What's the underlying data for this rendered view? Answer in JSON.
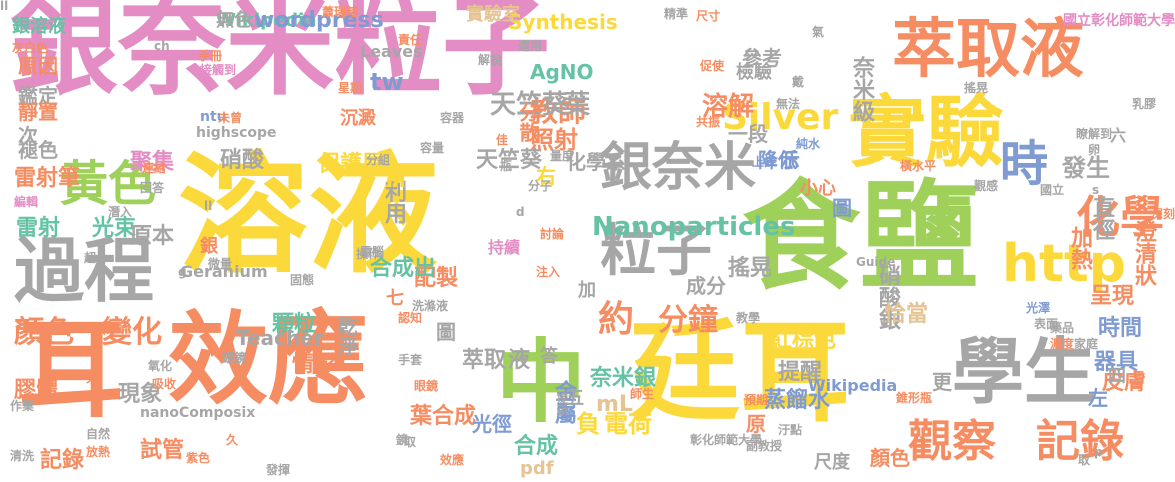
{
  "palette": {
    "pink": "#e38dc4",
    "yellow": "#fcd93a",
    "green": "#9ed05a",
    "orange": "#f68d62",
    "gray": "#a6a6a6",
    "blue": "#7f9bd1",
    "teal": "#66c2a5",
    "tan": "#e5c393"
  },
  "words": [
    {
      "text": "銀奈米粒子",
      "color": "pink"
    },
    {
      "text": "溶液",
      "color": "yellow"
    },
    {
      "text": "食鹽",
      "color": "green"
    },
    {
      "text": "廷耳",
      "color": "yellow"
    },
    {
      "text": "效應",
      "color": "orange"
    },
    {
      "text": "耳",
      "color": "orange"
    },
    {
      "text": "萃取液",
      "color": "orange"
    },
    {
      "text": "實驗",
      "color": "yellow"
    },
    {
      "text": "學生",
      "color": "gray"
    },
    {
      "text": "中",
      "color": "green"
    },
    {
      "text": "過程",
      "color": "gray"
    },
    {
      "text": "黃色",
      "color": "green"
    },
    {
      "text": "http",
      "color": "yellow"
    },
    {
      "text": "銀奈米",
      "color": "gray"
    },
    {
      "text": "粒子",
      "color": "gray"
    },
    {
      "text": "觀察",
      "color": "orange"
    },
    {
      "text": "記錄",
      "color": "orange"
    },
    {
      "text": "顏色",
      "color": "orange"
    },
    {
      "text": "變化",
      "color": "orange"
    },
    {
      "text": "時",
      "color": "blue"
    },
    {
      "text": "化學",
      "color": "orange"
    },
    {
      "text": "約",
      "color": "orange"
    },
    {
      "text": "分鐘",
      "color": "orange"
    },
    {
      "text": "Silver",
      "color": "yellow"
    },
    {
      "text": "教師",
      "color": "orange"
    },
    {
      "text": "溶解",
      "color": "orange"
    },
    {
      "text": "天竺葵",
      "color": "gray"
    },
    {
      "text": "葉",
      "color": "gray"
    },
    {
      "text": "銀溶液",
      "color": "teal"
    },
    {
      "text": "Wikipedia",
      "color": "teal"
    },
    {
      "text": "Synthesis",
      "color": "yellow"
    },
    {
      "text": "AgNO",
      "color": "teal"
    },
    {
      "text": "Nanoparticles",
      "color": "teal"
    },
    {
      "text": "雷射",
      "color": "teal"
    },
    {
      "text": "光束",
      "color": "teal"
    },
    {
      "text": "發生",
      "color": "gray"
    },
    {
      "text": "直徑",
      "color": "gray"
    },
    {
      "text": "加熱",
      "color": "orange"
    },
    {
      "text": "澄清狀",
      "color": "orange"
    },
    {
      "text": "呈現",
      "color": "orange"
    },
    {
      "text": "時間",
      "color": "blue"
    },
    {
      "text": "器具",
      "color": "blue"
    },
    {
      "text": "皮膚",
      "color": "orange"
    },
    {
      "text": "顆粒",
      "color": "teal"
    },
    {
      "text": "紅棕色",
      "color": "yellow"
    },
    {
      "text": "蒸餾水",
      "color": "blue"
    },
    {
      "text": "提醒",
      "color": "gray"
    },
    {
      "text": "萃取",
      "color": "gray"
    },
    {
      "text": "液",
      "color": "gray"
    },
    {
      "text": "葉合成",
      "color": "orange"
    },
    {
      "text": "負",
      "color": "yellow"
    },
    {
      "text": "電荷",
      "color": "yellow"
    },
    {
      "text": "合成",
      "color": "teal"
    },
    {
      "text": "金屬",
      "color": "blue"
    },
    {
      "text": "膠體",
      "color": "orange"
    },
    {
      "text": "現象",
      "color": "gray"
    },
    {
      "text": "試管",
      "color": "orange"
    },
    {
      "text": "記錄",
      "color": "orange"
    },
    {
      "text": "雷射筆",
      "color": "orange"
    },
    {
      "text": "聚集",
      "color": "pink"
    },
    {
      "text": "硝酸",
      "color": "gray"
    },
    {
      "text": "保護層",
      "color": "yellow"
    },
    {
      "text": "利用",
      "color": "gray"
    },
    {
      "text": "配製",
      "color": "orange"
    },
    {
      "text": "原本",
      "color": "gray"
    },
    {
      "text": "合成出",
      "color": "teal"
    },
    {
      "text": "搖晃",
      "color": "gray"
    },
    {
      "text": "成分",
      "color": "gray"
    },
    {
      "text": "化學系",
      "color": "gray"
    },
    {
      "text": "分散",
      "color": "orange"
    },
    {
      "text": "照射",
      "color": "orange"
    },
    {
      "text": "天竺葵",
      "color": "gray"
    },
    {
      "text": "右",
      "color": "yellow"
    },
    {
      "text": "M",
      "color": "yellow"
    },
    {
      "text": "tw",
      "color": "blue"
    },
    {
      "text": "沉澱",
      "color": "orange"
    },
    {
      "text": "參考",
      "color": "gray"
    },
    {
      "text": "檢驗",
      "color": "gray"
    },
    {
      "text": "奈米級",
      "color": "gray"
    },
    {
      "text": "降低",
      "color": "blue"
    },
    {
      "text": "示",
      "color": "blue"
    },
    {
      "text": "圖",
      "color": "blue"
    },
    {
      "text": "硝酸銀",
      "color": "gray"
    },
    {
      "text": "恰當",
      "color": "tan"
    },
    {
      "text": "一段",
      "color": "gray"
    },
    {
      "text": "奈米銀",
      "color": "teal"
    },
    {
      "text": "mL",
      "color": "tan"
    },
    {
      "text": "光徑",
      "color": "blue"
    },
    {
      "text": "情形",
      "color": "orange"
    },
    {
      "text": "乾淨",
      "color": "gray"
    },
    {
      "text": "小心",
      "color": "orange"
    },
    {
      "text": "highscope",
      "color": "gray"
    },
    {
      "text": "Leaves",
      "color": "gray"
    },
    {
      "text": "wordpress",
      "color": "blue"
    },
    {
      "text": "實驗室",
      "color": "tan"
    },
    {
      "text": "次",
      "color": "gray"
    },
    {
      "text": "鑑定",
      "color": "gray"
    },
    {
      "text": "靜置",
      "color": "orange"
    },
    {
      "text": "原因",
      "color": "orange"
    },
    {
      "text": "褪色",
      "color": "gray"
    },
    {
      "text": "答",
      "color": "gray"
    },
    {
      "text": "pdf",
      "color": "tan"
    },
    {
      "text": "nanoComposix",
      "color": "gray"
    },
    {
      "text": "Geranium",
      "color": "gray"
    },
    {
      "text": "ntu",
      "color": "blue"
    },
    {
      "text": "Guide",
      "color": "gray"
    },
    {
      "text": "Teacher",
      "color": "gray"
    },
    {
      "text": "銀",
      "color": "orange"
    },
    {
      "text": "圖",
      "color": "gray"
    },
    {
      "text": "七",
      "color": "orange"
    },
    {
      "text": "四",
      "color": "gray"
    },
    {
      "text": "六",
      "color": "gray"
    },
    {
      "text": "五",
      "color": "gray"
    },
    {
      "text": "加",
      "color": "gray"
    },
    {
      "text": "更",
      "color": "gray"
    },
    {
      "text": "原",
      "color": "orange"
    },
    {
      "text": "左",
      "color": "blue"
    },
    {
      "text": "顏色",
      "color": "orange"
    },
    {
      "text": "尺度",
      "color": "gray"
    },
    {
      "text": "無色",
      "color": "gray"
    },
    {
      "text": "Wikipedia",
      "color": "blue"
    },
    {
      "text": "ch",
      "color": "gray"
    },
    {
      "text": "持續",
      "color": "pink"
    },
    {
      "text": "搖晃",
      "color": "gray"
    },
    {
      "text": "彰化師範大學",
      "color": "gray"
    },
    {
      "text": "國立彰化師範大學",
      "color": "pink"
    },
    {
      "text": "灰白色",
      "color": "orange"
    },
    {
      "text": "清洗",
      "color": "gray"
    },
    {
      "text": "作業",
      "color": "gray"
    },
    {
      "text": "氧化",
      "color": "gray"
    },
    {
      "text": "吸收",
      "color": "orange"
    },
    {
      "text": "銀鏡",
      "color": "gray"
    },
    {
      "text": "手套",
      "color": "gray"
    },
    {
      "text": "眼鏡",
      "color": "orange"
    },
    {
      "text": "師生",
      "color": "orange"
    },
    {
      "text": "提示",
      "color": "gray"
    },
    {
      "text": "錐形瓶",
      "color": "orange"
    },
    {
      "text": "副教授",
      "color": "gray"
    },
    {
      "text": "教學",
      "color": "gray"
    },
    {
      "text": "光澤",
      "color": "blue"
    },
    {
      "text": "表面",
      "color": "gray"
    },
    {
      "text": "藥品",
      "color": "gray"
    },
    {
      "text": "濃度",
      "color": "orange"
    },
    {
      "text": "家庭",
      "color": "gray"
    },
    {
      "text": "汙點",
      "color": "gray"
    },
    {
      "text": "預期",
      "color": "orange"
    },
    {
      "text": "紫色",
      "color": "orange"
    },
    {
      "text": "放熱",
      "color": "orange"
    },
    {
      "text": "自然",
      "color": "gray"
    },
    {
      "text": "發揮",
      "color": "gray"
    },
    {
      "text": "效應",
      "color": "orange"
    },
    {
      "text": "星期",
      "color": "orange"
    },
    {
      "text": "共振",
      "color": "orange"
    },
    {
      "text": "純水",
      "color": "blue"
    },
    {
      "text": "上課",
      "color": "blue"
    },
    {
      "text": "無法",
      "color": "gray"
    },
    {
      "text": "國立",
      "color": "gray"
    },
    {
      "text": "瞭解到",
      "color": "gray"
    },
    {
      "text": "乳膠",
      "color": "gray"
    },
    {
      "text": "手冊",
      "color": "orange"
    },
    {
      "text": "接觸到",
      "color": "pink"
    },
    {
      "text": "未曾",
      "color": "orange"
    },
    {
      "text": "解說",
      "color": "gray"
    },
    {
      "text": "選用",
      "color": "gray"
    },
    {
      "text": "精準",
      "color": "gray"
    },
    {
      "text": "瓶",
      "color": "gray"
    },
    {
      "text": "分子",
      "color": "gray"
    },
    {
      "text": "量度",
      "color": "gray"
    },
    {
      "text": "佳",
      "color": "orange"
    },
    {
      "text": "容器",
      "color": "gray"
    },
    {
      "text": "容量",
      "color": "gray"
    },
    {
      "text": "分組",
      "color": "gray"
    },
    {
      "text": "固態",
      "color": "gray"
    },
    {
      "text": "電腦",
      "color": "gray"
    },
    {
      "text": "討論",
      "color": "orange"
    },
    {
      "text": "注入",
      "color": "orange"
    },
    {
      "text": "微量",
      "color": "gray"
    },
    {
      "text": "操作",
      "color": "gray"
    },
    {
      "text": "橫水平",
      "color": "orange"
    },
    {
      "text": "潛入",
      "color": "gray"
    },
    {
      "text": "連結",
      "color": "orange"
    },
    {
      "text": "回答",
      "color": "gray"
    },
    {
      "text": "編輯",
      "color": "pink"
    },
    {
      "text": "洗滌液",
      "color": "gray"
    },
    {
      "text": "認知",
      "color": "orange"
    },
    {
      "text": "責任",
      "color": "orange"
    },
    {
      "text": "戴",
      "color": "gray"
    },
    {
      "text": "氣",
      "color": "gray"
    },
    {
      "text": "促使",
      "color": "orange"
    },
    {
      "text": "尺寸",
      "color": "orange"
    },
    {
      "text": "蕭瑞瑢",
      "color": "orange"
    },
    {
      "text": "觀感",
      "color": "gray"
    },
    {
      "text": "取",
      "color": "gray"
    },
    {
      "text": "深刻",
      "color": "orange"
    },
    {
      "text": "卵",
      "color": "gray"
    },
    {
      "text": "p",
      "color": "gray"
    },
    {
      "text": "s",
      "color": "gray"
    },
    {
      "text": "d",
      "color": "gray"
    },
    {
      "text": "g",
      "color": "gray"
    },
    {
      "text": "ll",
      "color": "gray"
    },
    {
      "text": "天",
      "color": "orange"
    },
    {
      "text": "超",
      "color": "gray"
    },
    {
      "text": "久",
      "color": "orange"
    },
    {
      "text": "鏡",
      "color": "gray"
    },
    {
      "text": "取",
      "color": "gray"
    },
    {
      "text": "ll",
      "color": "gray"
    }
  ]
}
